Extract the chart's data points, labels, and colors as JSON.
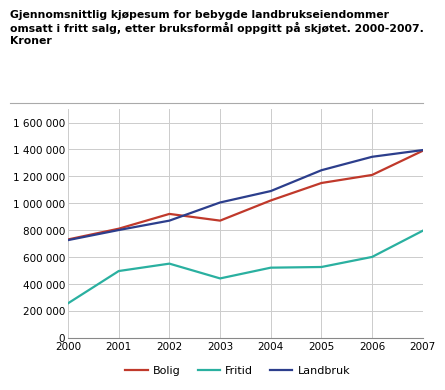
{
  "title_line1": "Gjennomsnittlig kjøpesum for bebygde landbrukseiendommer",
  "title_line2": "omsatt i fritt salg, etter bruksformål oppgitt på skjøtet. 2000-2007.",
  "title_line3": "Kroner",
  "years": [
    2000,
    2001,
    2002,
    2003,
    2004,
    2005,
    2006,
    2007
  ],
  "bolig": [
    730000,
    810000,
    920000,
    870000,
    1020000,
    1150000,
    1210000,
    1390000
  ],
  "fritid": [
    255000,
    495000,
    550000,
    440000,
    520000,
    525000,
    600000,
    795000
  ],
  "landbruk": [
    725000,
    800000,
    870000,
    1005000,
    1090000,
    1245000,
    1345000,
    1395000
  ],
  "bolig_color": "#c0392b",
  "fritid_color": "#2ab0a0",
  "landbruk_color": "#2c3e8c",
  "ylim": [
    0,
    1700000
  ],
  "yticks": [
    0,
    200000,
    400000,
    600000,
    800000,
    1000000,
    1200000,
    1400000,
    1600000
  ],
  "background_color": "#ffffff",
  "grid_color": "#cccccc",
  "legend_labels": [
    "Bolig",
    "Fritid",
    "Landbruk"
  ]
}
